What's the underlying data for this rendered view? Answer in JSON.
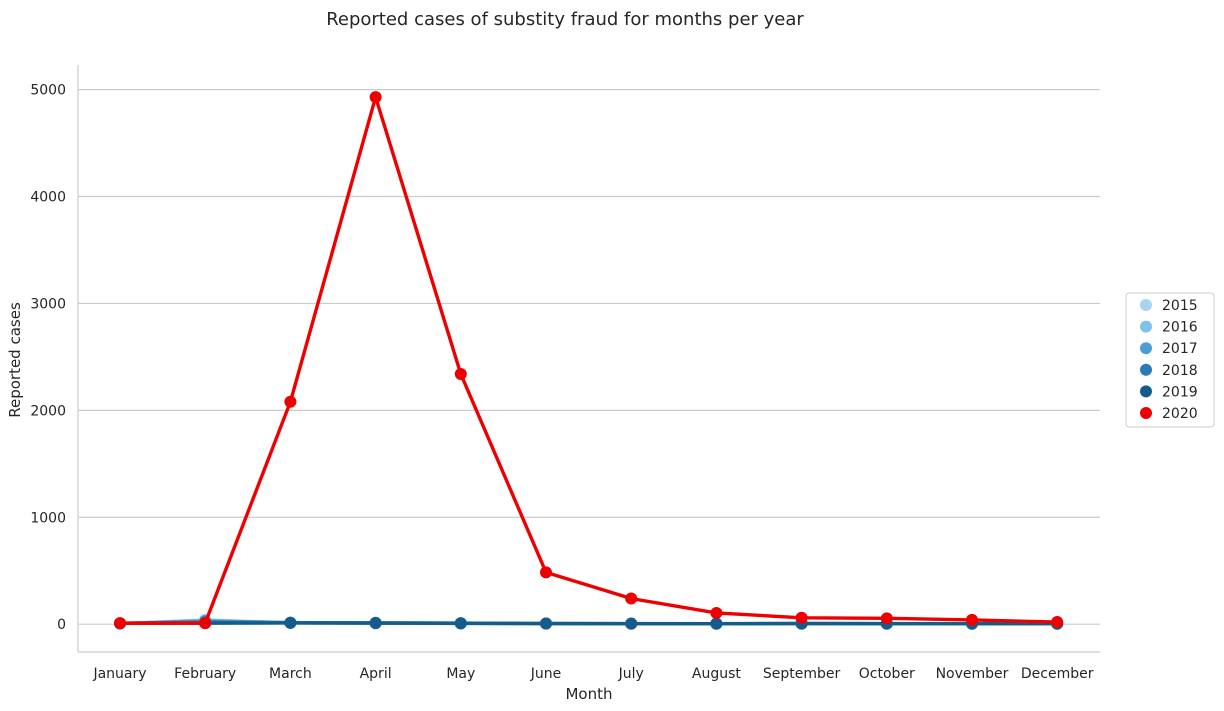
{
  "chart_data": {
    "type": "line",
    "title": "Reported cases of substity fraud for months per year",
    "xlabel": "Month",
    "ylabel": "Reported cases",
    "categories": [
      "January",
      "February",
      "March",
      "April",
      "May",
      "June",
      "July",
      "August",
      "September",
      "October",
      "November",
      "December"
    ],
    "ylim": [
      -260,
      5230
    ],
    "yticks": [
      0,
      1000,
      2000,
      3000,
      4000,
      5000
    ],
    "grid": "horizontal",
    "legend_position": "right",
    "series": [
      {
        "name": "2015",
        "color": "#a6d4f2",
        "values": [
          5,
          40,
          12,
          8,
          6,
          5,
          4,
          4,
          4,
          4,
          4,
          4
        ]
      },
      {
        "name": "2016",
        "color": "#7fc1ea",
        "values": [
          6,
          35,
          14,
          10,
          7,
          5,
          5,
          4,
          4,
          4,
          4,
          4
        ]
      },
      {
        "name": "2017",
        "color": "#4a9ed6",
        "values": [
          7,
          30,
          15,
          12,
          9,
          6,
          5,
          5,
          5,
          4,
          4,
          4
        ]
      },
      {
        "name": "2018",
        "color": "#2a7bb8",
        "values": [
          8,
          20,
          14,
          13,
          10,
          7,
          6,
          5,
          6,
          5,
          5,
          5
        ]
      },
      {
        "name": "2019",
        "color": "#155c8c",
        "values": [
          8,
          10,
          12,
          10,
          8,
          6,
          5,
          5,
          7,
          6,
          5,
          5
        ]
      },
      {
        "name": "2020",
        "color": "#ee0000",
        "values": [
          10,
          10,
          2080,
          4930,
          2340,
          485,
          240,
          105,
          60,
          55,
          40,
          20
        ]
      }
    ]
  }
}
